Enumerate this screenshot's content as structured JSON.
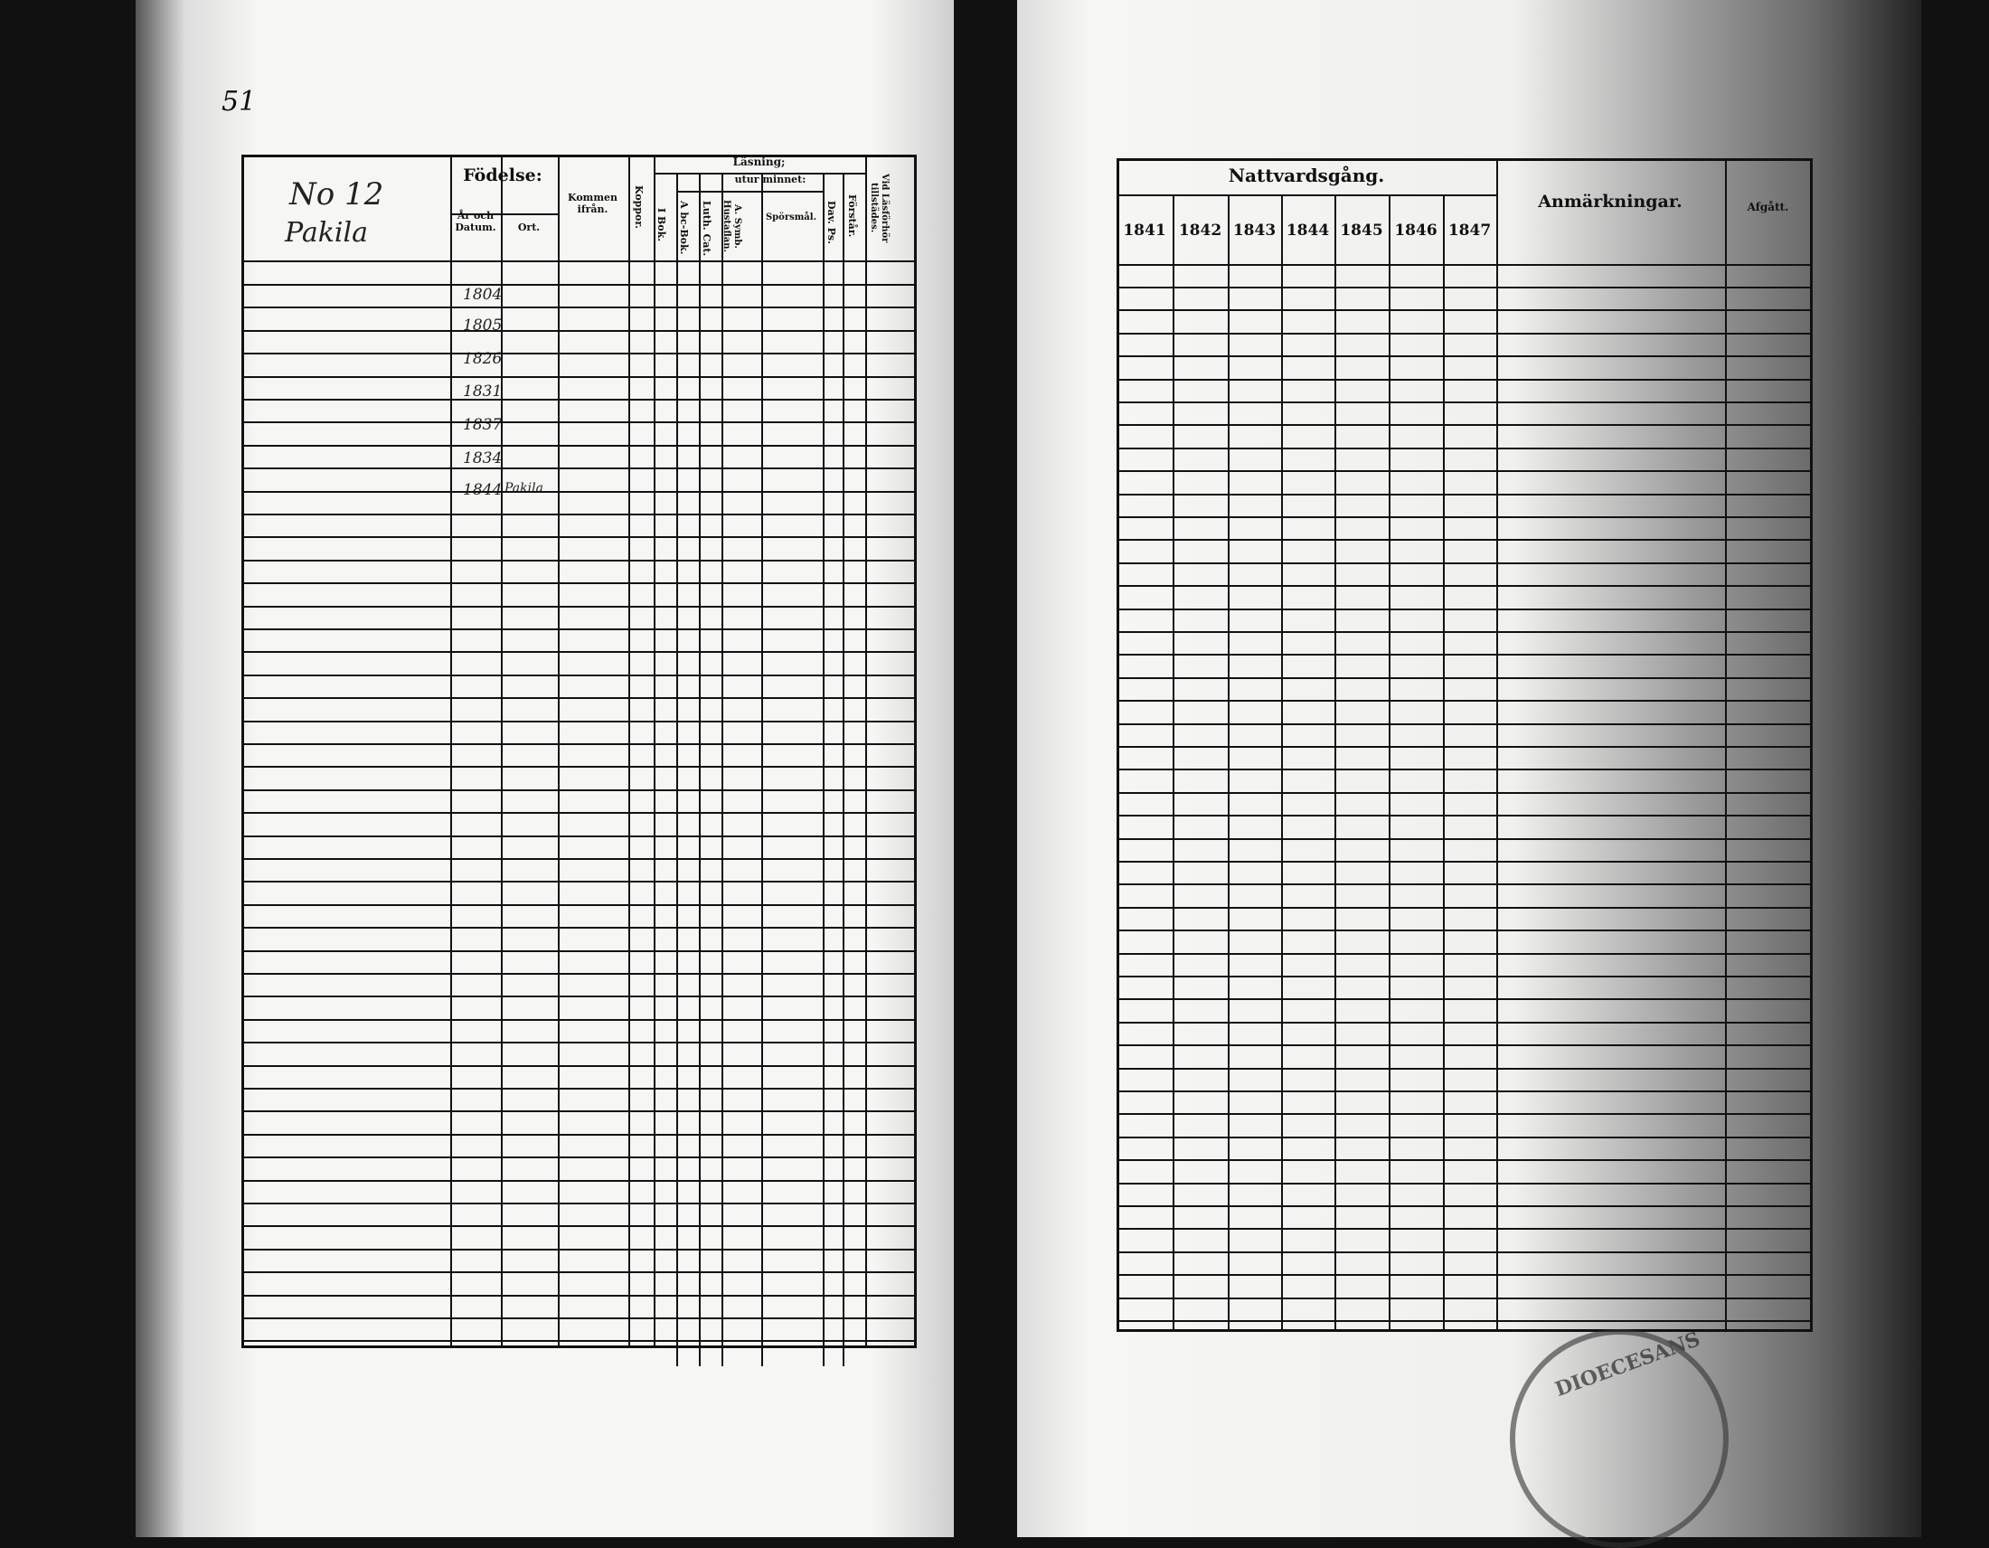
{
  "page_number": "51",
  "left": {
    "household_no": "No 12",
    "place": "Pakila",
    "headers": {
      "fodelse": "Födelse:",
      "ar_och_datum": "År och Datum.",
      "ort": "Ort.",
      "kommen_ifran": "Kommen ifrån.",
      "koppor": "Koppor.",
      "lasning": "Läsning;",
      "utur_minnet": "utur minnet:",
      "i_bok": "I Bok.",
      "abc_bok": "A bc-Bok.",
      "luth_cat": "Luth. Cat.",
      "a_symb": "A. Symb. Hustaflan.",
      "sporsmal": "Spörsmål.",
      "dav_ps": "Dav. Ps.",
      "forstar": "Förstår.",
      "vid_lasforhor": "Vid Läsförhör tillstädes."
    },
    "entries": [
      {
        "birth": "1804"
      },
      {
        "birth": "1805"
      },
      {
        "birth": "1826"
      },
      {
        "birth": "1831"
      },
      {
        "birth": "1837"
      },
      {
        "birth": "1834"
      },
      {
        "birth": "1844",
        "ort": "Pakila"
      }
    ]
  },
  "right": {
    "headers": {
      "nattvardsgang": "Nattvardsgång.",
      "years": [
        "1841",
        "1842",
        "1843",
        "1844",
        "1845",
        "1846",
        "1847"
      ],
      "anmarkningar": "Anmärkningar.",
      "afgatt": "Afgått."
    }
  },
  "stamp_text": "DIOECESANS"
}
